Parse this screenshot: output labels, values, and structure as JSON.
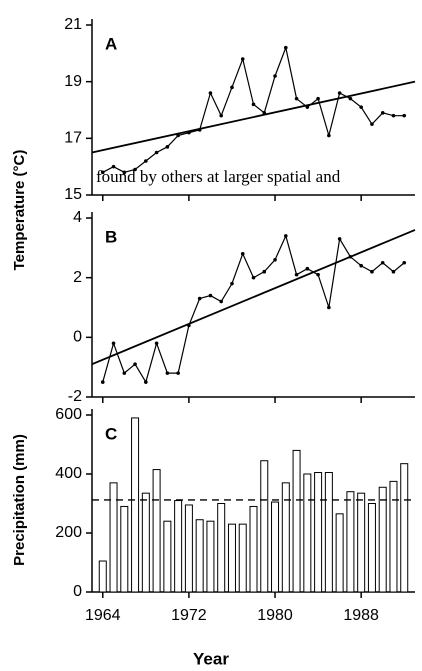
{
  "chart_data": [
    {
      "type": "line",
      "title": "A",
      "ylabel": "Temperature (°C)",
      "xlim": [
        1963,
        1993
      ],
      "ylim": [
        15,
        21
      ],
      "yticks": [
        15,
        17,
        19,
        21
      ],
      "series": [
        {
          "x": [
            1964,
            1965,
            1966,
            1967,
            1968,
            1969,
            1970,
            1971,
            1972,
            1973,
            1974,
            1975,
            1976,
            1977,
            1978,
            1979,
            1980,
            1981,
            1982,
            1983,
            1984,
            1985,
            1986,
            1987,
            1988,
            1989,
            1990,
            1991,
            1992
          ],
          "values": [
            15.8,
            16.0,
            15.8,
            15.9,
            16.2,
            16.5,
            16.7,
            17.1,
            17.2,
            17.3,
            18.6,
            17.8,
            18.8,
            19.8,
            18.2,
            17.9,
            19.2,
            20.2,
            18.4,
            18.1,
            18.4,
            17.1,
            18.6,
            18.4,
            18.1,
            17.5,
            17.9,
            17.8,
            17.8
          ],
          "color": "#000000"
        },
        {
          "x": [
            1963,
            1993
          ],
          "values": [
            16.5,
            19.0
          ],
          "color": "#000000"
        }
      ]
    },
    {
      "type": "line",
      "title": "B",
      "xlim": [
        1963,
        1993
      ],
      "ylim": [
        -2,
        4
      ],
      "yticks": [
        -2,
        0,
        2,
        4
      ],
      "series": [
        {
          "x": [
            1964,
            1965,
            1966,
            1967,
            1968,
            1969,
            1970,
            1971,
            1972,
            1973,
            1974,
            1975,
            1976,
            1977,
            1978,
            1979,
            1980,
            1981,
            1982,
            1983,
            1984,
            1985,
            1986,
            1987,
            1988,
            1989,
            1990,
            1991,
            1992
          ],
          "values": [
            -1.5,
            -0.2,
            -1.2,
            -0.9,
            -1.5,
            -0.2,
            -1.2,
            -1.2,
            0.4,
            1.3,
            1.4,
            1.2,
            1.8,
            2.8,
            2.0,
            2.2,
            2.6,
            3.4,
            2.1,
            2.3,
            2.1,
            1.0,
            3.3,
            2.7,
            2.4,
            2.2,
            2.5,
            2.2,
            2.5
          ],
          "color": "#000000"
        },
        {
          "x": [
            1963,
            1993
          ],
          "values": [
            -0.9,
            3.6
          ],
          "color": "#000000"
        }
      ]
    },
    {
      "type": "bar",
      "title": "C",
      "ylabel": "Precipitation (mm)",
      "xlabel": "Year",
      "xlim": [
        1963,
        1993
      ],
      "ylim": [
        0,
        600
      ],
      "yticks": [
        0,
        200,
        400,
        600
      ],
      "xticks": [
        1964,
        1972,
        1980,
        1988
      ],
      "x": [
        1964,
        1965,
        1966,
        1967,
        1968,
        1969,
        1970,
        1971,
        1972,
        1973,
        1974,
        1975,
        1976,
        1977,
        1978,
        1979,
        1980,
        1981,
        1982,
        1983,
        1984,
        1985,
        1986,
        1987,
        1988,
        1989,
        1990,
        1991,
        1992
      ],
      "values": [
        105,
        370,
        290,
        590,
        335,
        415,
        240,
        310,
        295,
        245,
        240,
        300,
        230,
        230,
        290,
        445,
        305,
        370,
        480,
        400,
        405,
        405,
        265,
        340,
        335,
        300,
        355,
        375,
        435
      ],
      "hline": 312
    }
  ],
  "overlay_text": "found by others at larger spatial and"
}
